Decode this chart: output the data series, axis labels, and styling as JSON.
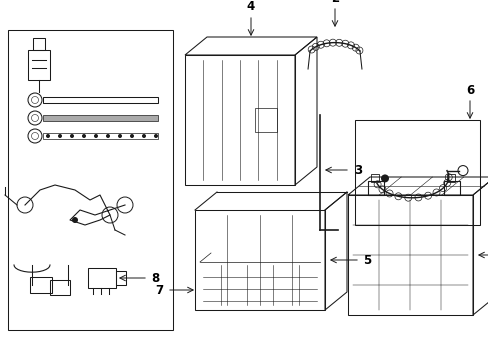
{
  "bg_color": "#ffffff",
  "lc": "#1a1a1a",
  "fig_width": 4.89,
  "fig_height": 3.6,
  "dpi": 100,
  "label_fs": 8.5,
  "lw": 0.75
}
